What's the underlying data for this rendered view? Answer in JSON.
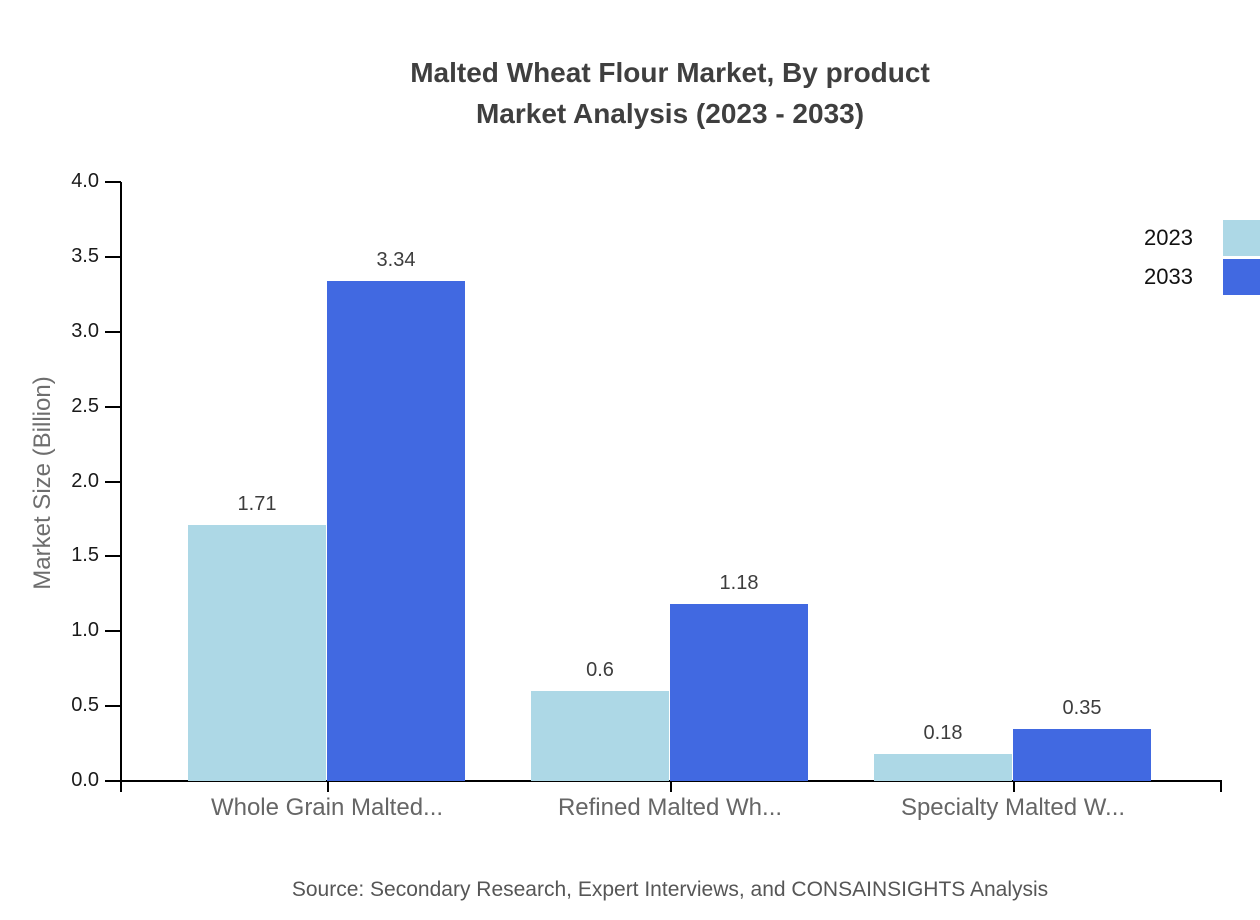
{
  "chart_data": {
    "type": "bar",
    "title_line1": "Malted Wheat Flour Market, By product",
    "title_line2": "Market Analysis (2023 - 2033)",
    "ylabel": "Market Size (Billion)",
    "xlabel": "",
    "categories": [
      "Whole Grain Malted...",
      "Refined Malted Wh...",
      "Specialty Malted W..."
    ],
    "series": [
      {
        "name": "2023",
        "color": "#ADD8E6",
        "values": [
          1.71,
          0.6,
          0.18
        ],
        "labels": [
          "1.71",
          "0.6",
          "0.18"
        ]
      },
      {
        "name": "2033",
        "color": "#4169E1",
        "values": [
          3.34,
          1.18,
          0.35
        ],
        "labels": [
          "3.34",
          "1.18",
          "0.35"
        ]
      }
    ],
    "ylim": [
      0.0,
      4.0
    ],
    "yticks": [
      "0.0",
      "0.5",
      "1.0",
      "1.5",
      "2.0",
      "2.5",
      "3.0",
      "3.5",
      "4.0"
    ],
    "grid": false,
    "legend_position": "top-right"
  },
  "source_note": "Source: Secondary Research, Expert Interviews, and CONSAINSIGHTS Analysis"
}
